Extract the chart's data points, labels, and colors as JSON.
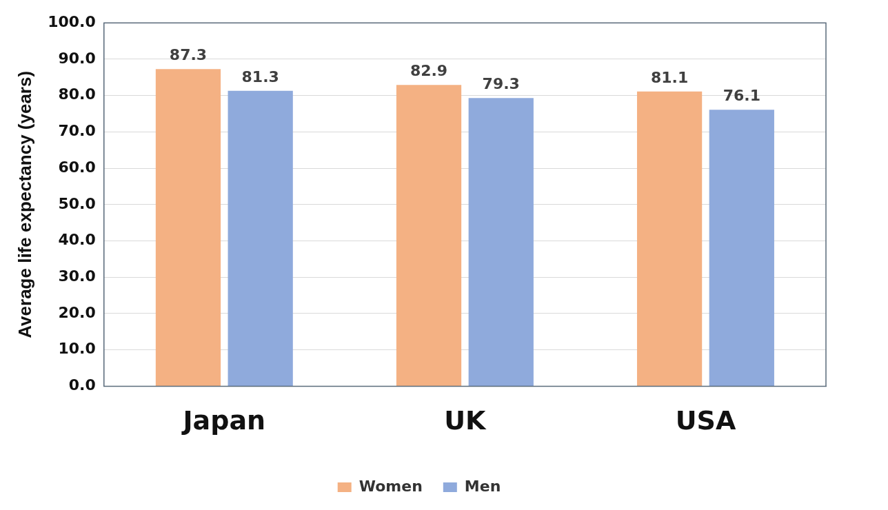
{
  "chart_data": {
    "type": "bar",
    "ylabel": "Average life expectancy (years)",
    "categories": [
      "Japan",
      "UK",
      "USA"
    ],
    "series": [
      {
        "name": "Women",
        "color": "#f4b183",
        "values": [
          87.3,
          82.9,
          81.1
        ]
      },
      {
        "name": "Men",
        "color": "#8faadc",
        "values": [
          81.3,
          79.3,
          76.1
        ]
      }
    ],
    "ylim": [
      0,
      100
    ],
    "yticks": [
      {
        "value": 0,
        "label": "0.0"
      },
      {
        "value": 10,
        "label": "10.0"
      },
      {
        "value": 20,
        "label": "20.0"
      },
      {
        "value": 30,
        "label": "30.0"
      },
      {
        "value": 40,
        "label": "40.0"
      },
      {
        "value": 50,
        "label": "50.0"
      },
      {
        "value": 60,
        "label": "60.0"
      },
      {
        "value": 70,
        "label": "70.0"
      },
      {
        "value": 80,
        "label": "80.0"
      },
      {
        "value": 90,
        "label": "90.0"
      },
      {
        "value": 100,
        "label": "100.0"
      }
    ],
    "grid": "y",
    "legend": "bottom",
    "data_labels": true
  }
}
